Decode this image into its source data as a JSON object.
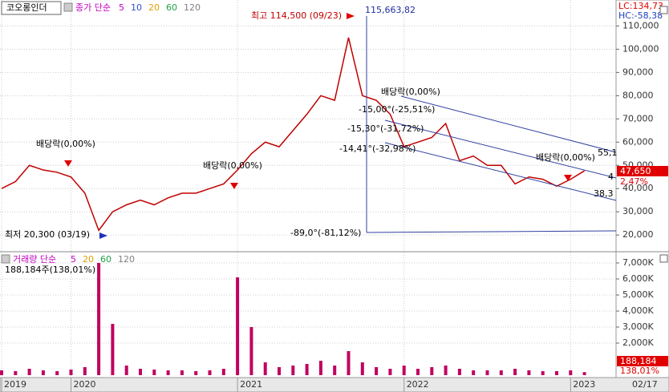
{
  "chart_data": {
    "type": "line",
    "symbol": "코오롱인더",
    "price_legend": {
      "label": "종가 단순",
      "items": [
        {
          "label": "5",
          "color": "#c000c0"
        },
        {
          "label": "10",
          "color": "#3050d0"
        },
        {
          "label": "20",
          "color": "#e0a000"
        },
        {
          "label": "60",
          "color": "#20a040"
        },
        {
          "label": "120",
          "color": "#808080"
        }
      ]
    },
    "volume_legend": {
      "label": "거래량 단순",
      "items": [
        {
          "label": "5",
          "color": "#c000c0"
        },
        {
          "label": "20",
          "color": "#e0a000"
        },
        {
          "label": "60",
          "color": "#20a040"
        },
        {
          "label": "120",
          "color": "#808080"
        }
      ]
    },
    "categories": [
      "2019",
      null,
      null,
      null,
      null,
      "2020",
      null,
      null,
      null,
      null,
      null,
      null,
      null,
      null,
      null,
      null,
      null,
      "2021",
      null,
      null,
      null,
      null,
      null,
      null,
      null,
      null,
      null,
      null,
      null,
      "2022",
      null,
      null,
      null,
      null,
      null,
      null,
      null,
      null,
      null,
      null,
      null,
      "2023",
      null
    ],
    "series": [
      {
        "name": "종가",
        "color": "#c00000",
        "values": [
          40000,
          43000,
          50000,
          48000,
          47000,
          45000,
          38000,
          22000,
          30000,
          33000,
          35000,
          33000,
          36000,
          38000,
          38000,
          40000,
          42000,
          48000,
          55000,
          60000,
          58000,
          65000,
          72000,
          80000,
          78000,
          105000,
          80000,
          78000,
          72000,
          58000,
          60000,
          62000,
          68000,
          52000,
          54000,
          50000,
          50000,
          42000,
          45000,
          44000,
          41000,
          44000,
          47650
        ]
      }
    ],
    "volume": {
      "color": "#c00060",
      "values": [
        300,
        250,
        400,
        300,
        250,
        350,
        500,
        7000,
        3200,
        600,
        400,
        350,
        300,
        300,
        250,
        300,
        400,
        6100,
        3000,
        800,
        500,
        600,
        700,
        900,
        600,
        1500,
        800,
        500,
        400,
        600,
        400,
        500,
        600,
        400,
        300,
        300,
        300,
        400,
        300,
        250,
        250,
        300,
        188
      ]
    },
    "ylim": [
      13500,
      120500
    ],
    "yticks": [
      {
        "value": 20000,
        "label": "20,000"
      },
      {
        "value": 30000,
        "label": "30,000"
      },
      {
        "value": 40000,
        "label": "40,000"
      },
      {
        "value": 50000,
        "label": "50,000"
      },
      {
        "value": 60000,
        "label": "60,000"
      },
      {
        "value": 70000,
        "label": "70,000"
      },
      {
        "value": 80000,
        "label": "80,000"
      },
      {
        "value": 90000,
        "label": "90,000"
      },
      {
        "value": 100000,
        "label": "100,000"
      },
      {
        "value": 110000,
        "label": "110,000"
      }
    ],
    "y2lim": [
      0,
      7500
    ],
    "y2ticks": [
      {
        "value": 2000,
        "label": "2,000K"
      },
      {
        "value": 3000,
        "label": "3,000K"
      },
      {
        "value": 4000,
        "label": "4,000K"
      },
      {
        "value": 5000,
        "label": "5,000K"
      },
      {
        "value": 6000,
        "label": "6,000K"
      },
      {
        "value": 7000,
        "label": "7,000K"
      }
    ],
    "grid": true,
    "current_price": "47,650",
    "current_change": "2,47%",
    "current_volume": "188,184",
    "current_volume_ratio": "138,01%",
    "volume_info": "188,184주(138,01%)",
    "last_date": "02/17",
    "lc": "LC:134,73",
    "hc": "HC:-58,38",
    "annotations": {
      "high": "최고 114,500 (09/23)",
      "high_value": "115,663,82",
      "low": "최저 20,300 (03/19)",
      "div1": "배당락(0,00%)",
      "div2": "배당락(0,00%)",
      "div3": "배당락(0,00%)",
      "div4": "배당락(0,00%)",
      "fib1": "-15,00°(-25,51%)",
      "fib2": "-15,30°(-31,72%)",
      "fib3": "-14,41°(-32,98%)",
      "fib4": "-89,0°(-81,12%)",
      "ch1": "55,1",
      "ch2": "38,3",
      "ch3": "4"
    }
  }
}
